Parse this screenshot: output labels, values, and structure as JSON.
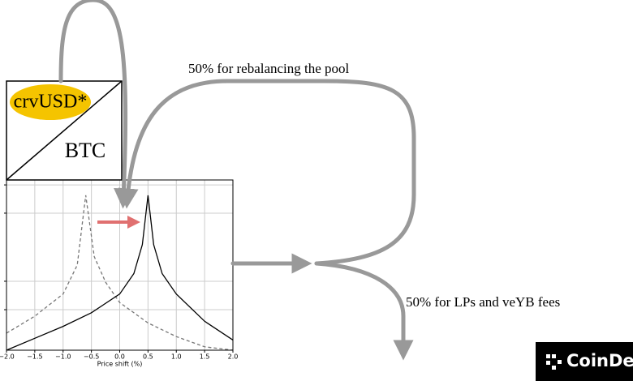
{
  "diagram": {
    "top_token": "crvUSD*",
    "bottom_token": "BTC",
    "rebalance_label": "50% for rebalancing the pool",
    "fees_label": "50% for LPs and veYB fees",
    "logo": "CoinDesk"
  },
  "chart_data": {
    "type": "line",
    "xlabel": "Price shift (%)",
    "xlim": [
      -2,
      2
    ],
    "xticks": [
      {
        "value": -2,
        "label": "−2.0"
      },
      {
        "value": -1.5,
        "label": "−1.5"
      },
      {
        "value": -1,
        "label": "−1.0"
      },
      {
        "value": -0.5,
        "label": "−0.5"
      },
      {
        "value": 0,
        "label": "0.0"
      },
      {
        "value": 0.5,
        "label": "0.5"
      },
      {
        "value": 1,
        "label": "1.0"
      },
      {
        "value": 1.5,
        "label": "1.5"
      },
      {
        "value": 2,
        "label": "2.0"
      }
    ],
    "ylim": [
      0,
      1
    ],
    "yticks": [
      0.238,
      0.405,
      0.805,
      0.971
    ],
    "grid": true,
    "series": [
      {
        "color": "#777777",
        "style": "dashed",
        "x": [
          -2,
          -1.5,
          -1,
          -0.75,
          -0.6,
          -0.45,
          -0.25,
          0,
          0.5,
          1,
          1.5,
          2
        ],
        "values": [
          0.1,
          0.2,
          0.33,
          0.5,
          0.91,
          0.55,
          0.4,
          0.28,
          0.16,
          0.08,
          0.02,
          0
        ]
      },
      {
        "color": "#000000",
        "style": "solid",
        "x": [
          -2,
          -1.5,
          -1,
          -0.5,
          0,
          0.25,
          0.4,
          0.5,
          0.6,
          0.75,
          1,
          1.5,
          2
        ],
        "values": [
          0.0,
          0.07,
          0.14,
          0.22,
          0.33,
          0.45,
          0.62,
          0.91,
          0.62,
          0.45,
          0.33,
          0.17,
          0.06
        ]
      }
    ]
  }
}
